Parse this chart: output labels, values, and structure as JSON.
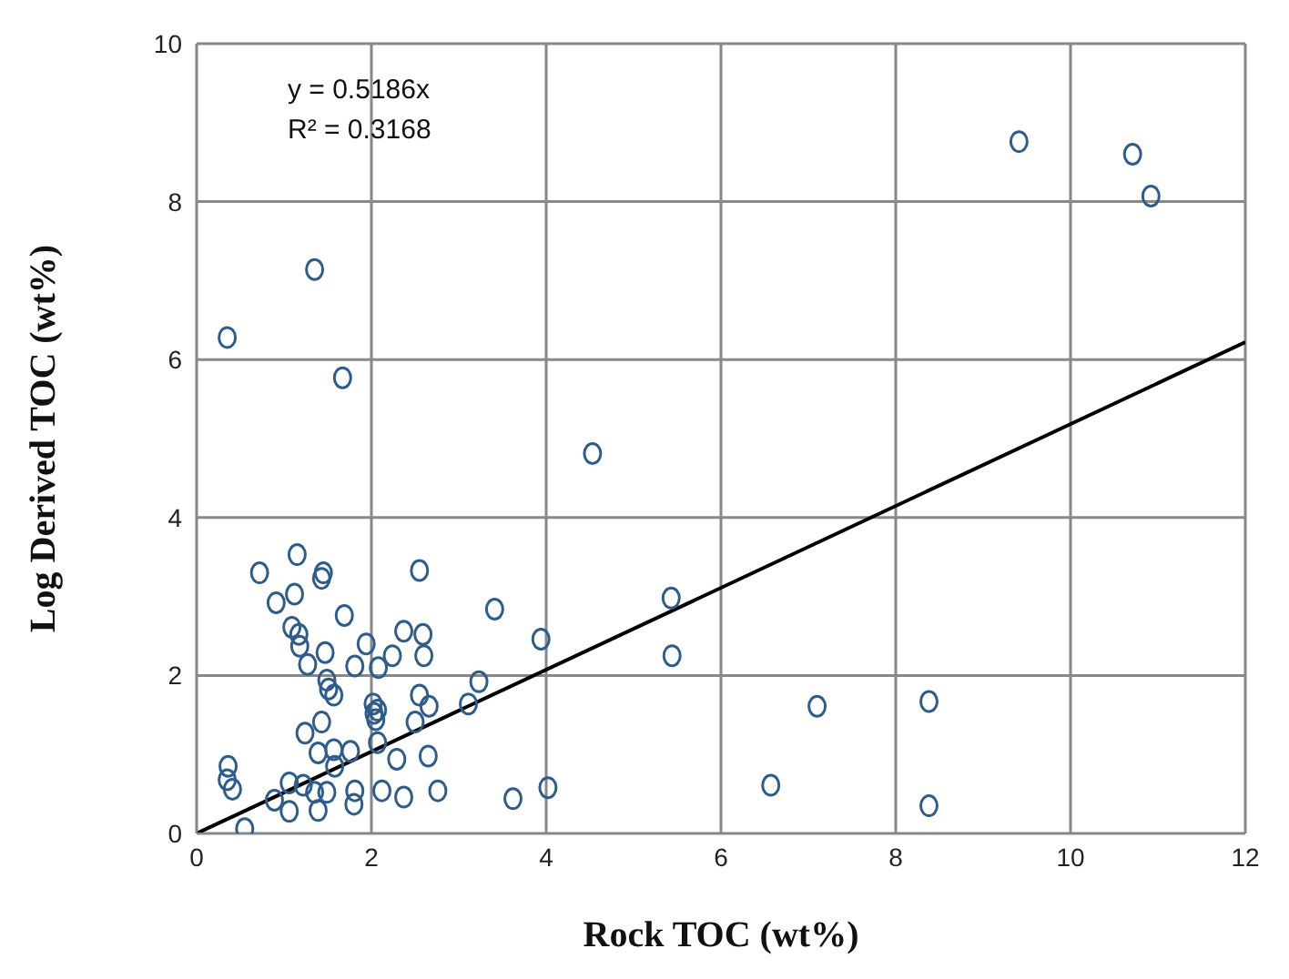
{
  "chart_data": {
    "type": "scatter",
    "xlabel": "Rock TOC  (wt%)",
    "ylabel": "Log Derived TOC (wt%)",
    "xlim": [
      0,
      12
    ],
    "xticks": [
      0,
      2,
      4,
      6,
      8,
      10,
      12
    ],
    "ylim": [
      0,
      10
    ],
    "yticks": [
      0,
      2,
      4,
      6,
      8,
      10
    ],
    "grid": true,
    "marker": "circle",
    "annotations": [
      "y = 0.5186x",
      "R² = 0.3168"
    ],
    "series": [
      {
        "color": "#2e5d8c",
        "x": [
          9.41,
          10.71,
          10.92,
          1.35,
          0.35,
          1.67,
          4.53,
          5.43,
          5.44,
          7.1,
          8.38,
          6.57,
          8.38,
          0.72,
          1.15,
          1.45,
          1.43,
          2.55,
          0.91,
          1.12,
          1.69,
          1.09,
          1.17,
          1.18,
          1.47,
          1.27,
          1.94,
          1.81,
          2.08,
          2.24,
          2.37,
          2.59,
          2.6,
          3.41,
          3.94,
          3.23,
          3.11,
          1.49,
          1.51,
          1.57,
          2.02,
          2.03,
          2.07,
          2.05,
          2.55,
          2.66,
          2.5,
          1.24,
          1.43,
          1.39,
          1.57,
          1.58,
          1.76,
          2.07,
          2.29,
          2.65,
          0.36,
          0.35,
          0.41,
          0.89,
          1.06,
          1.06,
          1.22,
          1.35,
          1.39,
          1.49,
          1.81,
          1.8,
          2.12,
          2.37,
          2.76,
          3.62,
          4.02,
          0.55
        ],
        "values": [
          8.76,
          8.6,
          8.07,
          7.14,
          6.28,
          5.77,
          4.81,
          2.98,
          2.25,
          1.61,
          1.67,
          0.61,
          0.35,
          3.3,
          3.53,
          3.3,
          3.23,
          3.33,
          2.92,
          3.03,
          2.76,
          2.61,
          2.52,
          2.37,
          2.29,
          2.14,
          2.4,
          2.12,
          2.1,
          2.25,
          2.56,
          2.52,
          2.25,
          2.84,
          2.46,
          1.92,
          1.64,
          1.94,
          1.83,
          1.75,
          1.64,
          1.52,
          1.56,
          1.44,
          1.75,
          1.61,
          1.41,
          1.27,
          1.41,
          1.02,
          1.06,
          0.85,
          1.04,
          1.15,
          0.94,
          0.98,
          0.85,
          0.68,
          0.56,
          0.42,
          0.64,
          0.28,
          0.61,
          0.52,
          0.29,
          0.52,
          0.54,
          0.37,
          0.54,
          0.46,
          0.54,
          0.44,
          0.58,
          0.06
        ]
      },
      {
        "type": "line",
        "color": "#000000",
        "x": [
          0,
          12
        ],
        "values": [
          0,
          6.22
        ],
        "marker": "none"
      }
    ]
  }
}
